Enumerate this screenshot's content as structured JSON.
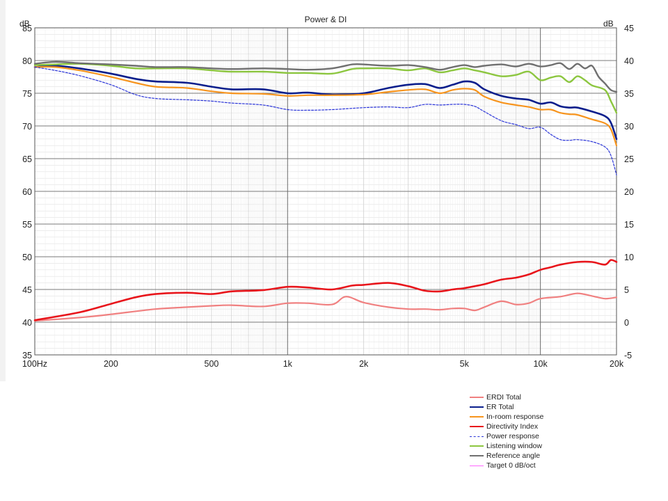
{
  "chart_data": {
    "type": "line",
    "title": "Power & DI",
    "xlabel": "",
    "ylabel": "dB",
    "y2label": "dB",
    "xscale": "log",
    "xlim": [
      100,
      20000
    ],
    "ylim": [
      35,
      85
    ],
    "y2lim": [
      -5,
      45
    ],
    "grid": true,
    "legend_position": "below-right",
    "x_ticks": [
      {
        "value": 100,
        "label": "100Hz"
      },
      {
        "value": 200,
        "label": "200"
      },
      {
        "value": 500,
        "label": "500"
      },
      {
        "value": 1000,
        "label": "1k"
      },
      {
        "value": 2000,
        "label": "2k"
      },
      {
        "value": 5000,
        "label": "5k"
      },
      {
        "value": 10000,
        "label": "10k"
      },
      {
        "value": 20000,
        "label": "20k"
      }
    ],
    "y_ticks": [
      "85",
      "80",
      "75",
      "70",
      "65",
      "60",
      "55",
      "50",
      "45",
      "40",
      "35"
    ],
    "y2_ticks": [
      "45",
      "40",
      "35",
      "30",
      "25",
      "20",
      "15",
      "10",
      "5",
      "0",
      "-5"
    ],
    "series": [
      {
        "name": "ERDI Total",
        "axis": "right",
        "color": "#f08080",
        "dash": false,
        "width": 2.2,
        "x": [
          100,
          150,
          200,
          300,
          400,
          500,
          600,
          800,
          1000,
          1200,
          1500,
          1700,
          2000,
          2500,
          3000,
          3500,
          4000,
          4500,
          5000,
          5500,
          6000,
          7000,
          8000,
          9000,
          10000,
          12000,
          14000,
          16000,
          18000,
          20000
        ],
        "y": [
          0.2,
          0.7,
          1.2,
          2.0,
          2.3,
          2.5,
          2.6,
          2.4,
          2.9,
          2.9,
          2.7,
          3.9,
          3.0,
          2.3,
          2.0,
          2.0,
          1.9,
          2.1,
          2.1,
          1.8,
          2.3,
          3.2,
          2.7,
          2.9,
          3.6,
          3.9,
          4.4,
          4.0,
          3.6,
          3.8
        ]
      },
      {
        "name": "ER Total",
        "axis": "left",
        "color": "#0a1e8c",
        "dash": false,
        "width": 2.6,
        "x": [
          100,
          120,
          150,
          200,
          250,
          300,
          400,
          500,
          600,
          800,
          1000,
          1200,
          1500,
          2000,
          2500,
          3000,
          3500,
          4000,
          4500,
          5000,
          5500,
          6000,
          7000,
          8000,
          9000,
          10000,
          11000,
          12000,
          13000,
          14000,
          16000,
          18000,
          19000,
          20000
        ],
        "y": [
          79.0,
          79.2,
          78.8,
          78.0,
          77.2,
          76.8,
          76.6,
          76.0,
          75.6,
          75.6,
          75.0,
          75.1,
          74.8,
          75.0,
          75.8,
          76.3,
          76.4,
          75.8,
          76.3,
          76.8,
          76.6,
          75.6,
          74.6,
          74.2,
          74.0,
          73.4,
          73.6,
          73.0,
          72.8,
          72.8,
          72.2,
          71.5,
          70.5,
          68.0
        ]
      },
      {
        "name": "In-room response",
        "axis": "left",
        "color": "#f7941d",
        "dash": false,
        "width": 2.2,
        "x": [
          100,
          120,
          150,
          200,
          250,
          300,
          400,
          500,
          600,
          800,
          1000,
          1200,
          1500,
          2000,
          2500,
          3000,
          3500,
          4000,
          4500,
          5000,
          5500,
          6000,
          7000,
          8000,
          9000,
          10000,
          11000,
          12000,
          13000,
          14000,
          16000,
          18000,
          19000,
          20000
        ],
        "y": [
          79.0,
          79.0,
          78.5,
          77.5,
          76.6,
          76.0,
          75.8,
          75.3,
          75.0,
          74.9,
          74.6,
          74.7,
          74.7,
          74.8,
          75.2,
          75.5,
          75.6,
          75.0,
          75.5,
          75.7,
          75.5,
          74.5,
          73.6,
          73.2,
          72.9,
          72.5,
          72.5,
          72.0,
          71.8,
          71.7,
          71.0,
          70.4,
          69.5,
          67.0
        ]
      },
      {
        "name": "Directivity Index",
        "axis": "right",
        "color": "#e8151b",
        "dash": false,
        "width": 2.6,
        "x": [
          100,
          150,
          200,
          250,
          300,
          400,
          500,
          600,
          800,
          1000,
          1200,
          1500,
          1800,
          2000,
          2500,
          3000,
          3500,
          4000,
          4500,
          5000,
          5500,
          6000,
          7000,
          8000,
          9000,
          10000,
          11000,
          12000,
          14000,
          16000,
          18000,
          19000,
          20000
        ],
        "y": [
          0.3,
          1.5,
          2.8,
          3.8,
          4.3,
          4.5,
          4.3,
          4.7,
          4.9,
          5.4,
          5.3,
          5.0,
          5.6,
          5.7,
          6.0,
          5.5,
          4.8,
          4.7,
          5.0,
          5.2,
          5.5,
          5.8,
          6.5,
          6.8,
          7.3,
          8.0,
          8.4,
          8.8,
          9.2,
          9.2,
          8.8,
          9.5,
          9.2
        ]
      },
      {
        "name": "Power response",
        "axis": "left",
        "color": "#2b35d8",
        "dash": true,
        "width": 1.2,
        "x": [
          100,
          120,
          150,
          200,
          250,
          300,
          400,
          500,
          600,
          800,
          1000,
          1200,
          1500,
          2000,
          2500,
          3000,
          3500,
          4000,
          4500,
          5000,
          5500,
          6000,
          7000,
          8000,
          9000,
          10000,
          11000,
          12000,
          13000,
          14000,
          16000,
          18000,
          19000,
          20000
        ],
        "y": [
          79.0,
          78.5,
          77.7,
          76.3,
          74.8,
          74.2,
          74.0,
          73.8,
          73.5,
          73.2,
          72.5,
          72.4,
          72.5,
          72.8,
          72.9,
          72.8,
          73.3,
          73.2,
          73.3,
          73.3,
          73.0,
          72.2,
          70.8,
          70.2,
          69.6,
          69.8,
          68.7,
          67.9,
          67.8,
          67.9,
          67.6,
          66.8,
          65.5,
          62.5
        ]
      },
      {
        "name": "Listening window",
        "axis": "left",
        "color": "#8cc63f",
        "dash": false,
        "width": 2.4,
        "x": [
          100,
          120,
          150,
          200,
          250,
          300,
          400,
          500,
          600,
          800,
          1000,
          1200,
          1500,
          1800,
          2000,
          2500,
          3000,
          3500,
          4000,
          4500,
          5000,
          5500,
          6000,
          7000,
          8000,
          9000,
          10000,
          11000,
          12000,
          13000,
          14000,
          15000,
          16000,
          18000,
          19000,
          20000
        ],
        "y": [
          79.3,
          79.4,
          79.5,
          79.2,
          78.8,
          78.8,
          78.8,
          78.5,
          78.3,
          78.3,
          78.1,
          78.1,
          78.0,
          78.7,
          78.8,
          78.8,
          78.5,
          78.8,
          78.2,
          78.5,
          78.8,
          78.5,
          78.2,
          77.6,
          77.8,
          78.3,
          77.0,
          77.4,
          77.6,
          76.7,
          77.6,
          77.0,
          76.2,
          75.5,
          73.8,
          72.0
        ]
      },
      {
        "name": "Reference angle",
        "axis": "left",
        "color": "#6f6f6f",
        "dash": false,
        "width": 2.4,
        "x": [
          100,
          120,
          150,
          200,
          250,
          300,
          400,
          500,
          600,
          800,
          1000,
          1200,
          1500,
          1800,
          2000,
          2500,
          3000,
          3500,
          4000,
          4500,
          5000,
          5500,
          6000,
          7000,
          8000,
          9000,
          10000,
          11000,
          12000,
          13000,
          14000,
          15000,
          16000,
          17000,
          18000,
          19000,
          20000
        ],
        "y": [
          79.5,
          79.8,
          79.6,
          79.4,
          79.2,
          79.0,
          79.0,
          78.8,
          78.7,
          78.8,
          78.7,
          78.6,
          78.8,
          79.4,
          79.4,
          79.2,
          79.3,
          79.0,
          78.6,
          79.0,
          79.3,
          79.0,
          79.2,
          79.4,
          79.1,
          79.5,
          79.1,
          79.3,
          79.6,
          78.7,
          79.5,
          78.8,
          79.2,
          77.5,
          76.5,
          75.5,
          75.2
        ]
      },
      {
        "name": "Target 0 dB/oct",
        "axis": "left",
        "color": "#ff66ff",
        "dash": false,
        "width": 1.2,
        "x": [],
        "y": []
      }
    ]
  }
}
